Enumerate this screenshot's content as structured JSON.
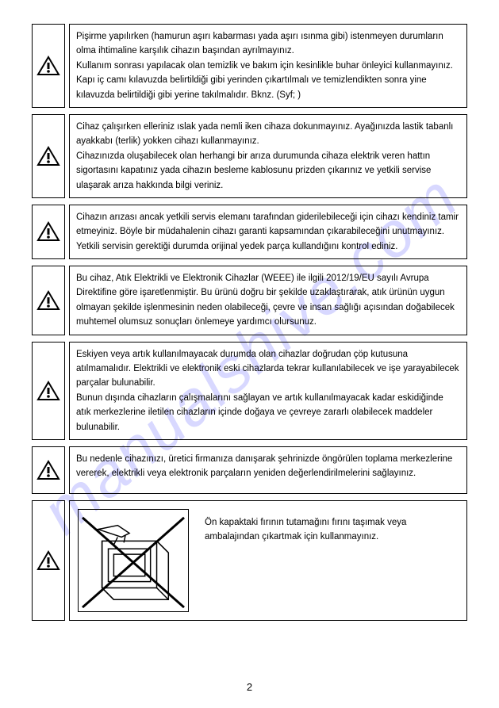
{
  "watermark": "manualshive.com",
  "warnings": [
    {
      "text": "Pişirme yapılırken (hamurun aşırı kabarması  yada aşırı ısınma gibi) istenmeyen durumların olma ihtimaline karşılık cihazın başından ayrılmayınız.\nKullanım sonrası yapılacak olan temizlik ve bakım için kesinlikle buhar önleyici kullanmayınız. Kapı iç camı kılavuzda belirtildiği gibi yerinden çıkartılmalı ve temizlendikten sonra yine kılavuzda belirtildiği gibi yerine takılmalıdır. Bknz. (Syf;     )"
    },
    {
      "text": "Cihaz çalışırken elleriniz ıslak yada nemli iken cihaza dokunmayınız. Ayağınızda lastik tabanlı ayakkabı (terlik) yokken cihazı kullanmayınız.\nCihazınızda oluşabilecek olan herhangi bir arıza durumunda cihaza elektrik veren hattın sigortasını kapatınız yada cihazın besleme kablosunu prizden çıkarınız ve yetkili servise ulaşarak arıza hakkında bilgi veriniz."
    },
    {
      "text": "Cihazın arızası ancak yetkili servis elemanı tarafından giderilebileceği için cihazı kendiniz tamir etmeyiniz. Böyle bir müdahalenin cihazı garanti kapsamından çıkarabileceğini unutmayınız. Yetkili servisin gerektiği durumda orijinal yedek parça kullandığını kontrol ediniz."
    },
    {
      "text": "Bu cihaz, Atık Elektrikli ve Elektronik Cihazlar (WEEE) ile ilgili 2012/19/EU sayılı Avrupa Direktifine göre işaretlenmiştir. Bu ürünü doğru bir şekilde uzaklaştırarak, atık ürünün uygun olmayan şekilde işlenmesinin neden olabileceği, çevre ve insan sağlığı açısından doğabilecek muhtemel olumsuz sonuçları önlemeye yardımcı olursunuz."
    },
    {
      "text": "Eskiyen veya artık kullanılmayacak durumda olan cihazlar doğrudan çöp kutusuna atılmamalıdır. Elektrikli ve elektronik eski cihazlarda tekrar kullanılabilecek ve işe yarayabilecek parçalar bulunabilir.\nBunun dışında cihazların çalışmalarını sağlayan ve artık kullanılmayacak kadar eskidiğinde atık merkezlerine iletilen cihazların içinde doğaya ve çevreye zararlı olabilecek maddeler bulunabilir."
    },
    {
      "text": "Bu nedenle cihazınızı, üretici firmanıza danışarak şehrinizde öngörülen toplama merkezlerine vererek, elektrikli veya elektronik parçaların yeniden değerlendirilmelerini sağlayınız."
    }
  ],
  "imageWarning": {
    "text": "Ön kapaktaki fırının tutamağını fırını taşımak veya ambalajından çıkartmak için kullanmayınız."
  },
  "pageNumber": "2"
}
